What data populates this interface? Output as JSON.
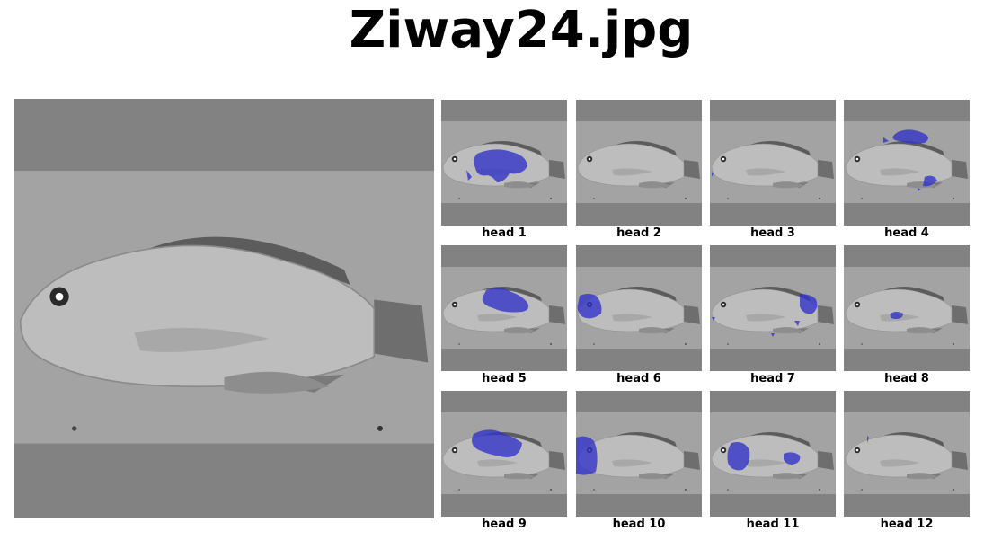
{
  "title": "Ziway24.jpg",
  "heads": [
    {
      "label": "head 1"
    },
    {
      "label": "head 2"
    },
    {
      "label": "head 3"
    },
    {
      "label": "head 4"
    },
    {
      "label": "head 5"
    },
    {
      "label": "head 6"
    },
    {
      "label": "head 7"
    },
    {
      "label": "head 8"
    },
    {
      "label": "head 9"
    },
    {
      "label": "head 10"
    },
    {
      "label": "head 11"
    },
    {
      "label": "head 12"
    }
  ],
  "colors": {
    "letterbox": "#828282",
    "background": "#a3a3a3",
    "fish_body": "#bdbdbd",
    "fins": "#6e6e6e",
    "attention_overlay": "#2f2fc8"
  }
}
